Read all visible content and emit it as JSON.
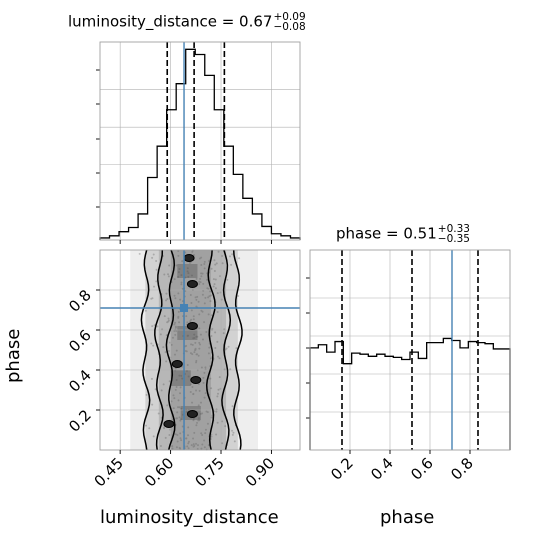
{
  "titles": {
    "lum": {
      "label": "luminosity_distance = 0.67",
      "plus": "+0.09",
      "minus": "−0.08"
    },
    "phase": {
      "label": "phase = 0.51",
      "plus": "+0.33",
      "minus": "−0.35"
    }
  },
  "chart_data": {
    "type": "corner",
    "parameters": [
      "luminosity_distance",
      "phase"
    ],
    "truth": {
      "luminosity_distance": 0.64,
      "phase": 0.71
    },
    "luminosity_distance": {
      "median": 0.67,
      "plus": 0.09,
      "minus": 0.08,
      "quantiles": [
        0.59,
        0.67,
        0.76
      ],
      "xlim": [
        0.39,
        0.985
      ],
      "xticks": [
        "0.45",
        "0.60",
        "0.75",
        "0.90"
      ],
      "xtick_values": [
        0.45,
        0.6,
        0.75,
        0.9
      ],
      "hist_counts": [
        2,
        4,
        8,
        12,
        25,
        60,
        90,
        125,
        150,
        183,
        178,
        158,
        125,
        90,
        63,
        40,
        25,
        13,
        6,
        4,
        2
      ],
      "hist_ymax": 190
    },
    "phase": {
      "median": 0.51,
      "plus": 0.33,
      "minus": 0.35,
      "quantiles": [
        0.16,
        0.51,
        0.84
      ],
      "xlim": [
        0.0,
        1.0
      ],
      "xticks": [
        "0.2",
        "0.4",
        "0.6",
        "0.8"
      ],
      "xtick_values": [
        0.2,
        0.4,
        0.6,
        0.8
      ],
      "hist_counts": [
        97,
        100,
        93,
        103,
        82,
        92,
        91,
        89,
        91,
        89,
        88,
        86,
        93,
        87,
        102,
        102,
        106,
        104,
        97,
        103,
        102,
        101,
        96,
        96
      ],
      "hist_ymax": 190
    },
    "joint": {
      "ylim": [
        0.0,
        1.0
      ],
      "yticks": [
        "0.2",
        "0.4",
        "0.6",
        "0.8"
      ],
      "ytick_values": [
        0.2,
        0.4,
        0.6,
        0.8
      ],
      "contour_levels": [
        {
          "x_left": 0.525,
          "x_right": 0.8
        },
        {
          "x_left": 0.565,
          "x_right": 0.765
        },
        {
          "x_left": 0.6,
          "x_right": 0.72
        }
      ]
    },
    "xlabel_lum": "luminosity_distance",
    "xlabel_phase": "phase",
    "ylabel_joint": "phase",
    "colors": {
      "truth": "#4682b4",
      "hist": "#000000",
      "grid": "#b0b0b0",
      "points": "#bdbdbd"
    }
  }
}
